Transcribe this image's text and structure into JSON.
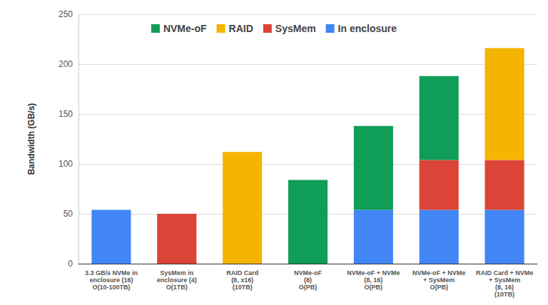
{
  "chart_data": {
    "type": "bar",
    "y_label": "Bandwidth (GB/s)",
    "categories": [
      "3.3 GB/s NVMe in\nenclosure (16)\nO(10-100TB)",
      "SysMem in\nenclosure (4)\nO(1TB)",
      "RAID Card\n(8, x16)\n(10TB)",
      "NVMe-oF\n(8)\nO(PB)",
      "NVMe-oF + NVMe\n(8, 16)\nO(PB)",
      "NVMe-oF + NVMe\n+ SysMem\nO(PB)",
      "RAID Card + NVMe\n+ SysMem\n(8, 16)\n(10TB)"
    ],
    "series": [
      {
        "name": "NVMe-oF",
        "color": "#0f9d58",
        "values": [
          null,
          null,
          null,
          84,
          84,
          84,
          null
        ]
      },
      {
        "name": "RAID",
        "color": "#f4b400",
        "values": [
          null,
          null,
          112,
          null,
          null,
          null,
          112
        ]
      },
      {
        "name": "SysMem",
        "color": "#db4437",
        "values": [
          null,
          50,
          null,
          null,
          null,
          50,
          50
        ]
      },
      {
        "name": "In enclosure",
        "color": "#4285f4",
        "values": [
          54,
          null,
          null,
          null,
          54,
          54,
          54
        ]
      }
    ],
    "ylim": [
      0,
      250
    ],
    "yticks": [
      0,
      50,
      100,
      150,
      200,
      250
    ],
    "grid": true,
    "stacked": true,
    "legend": "top"
  }
}
